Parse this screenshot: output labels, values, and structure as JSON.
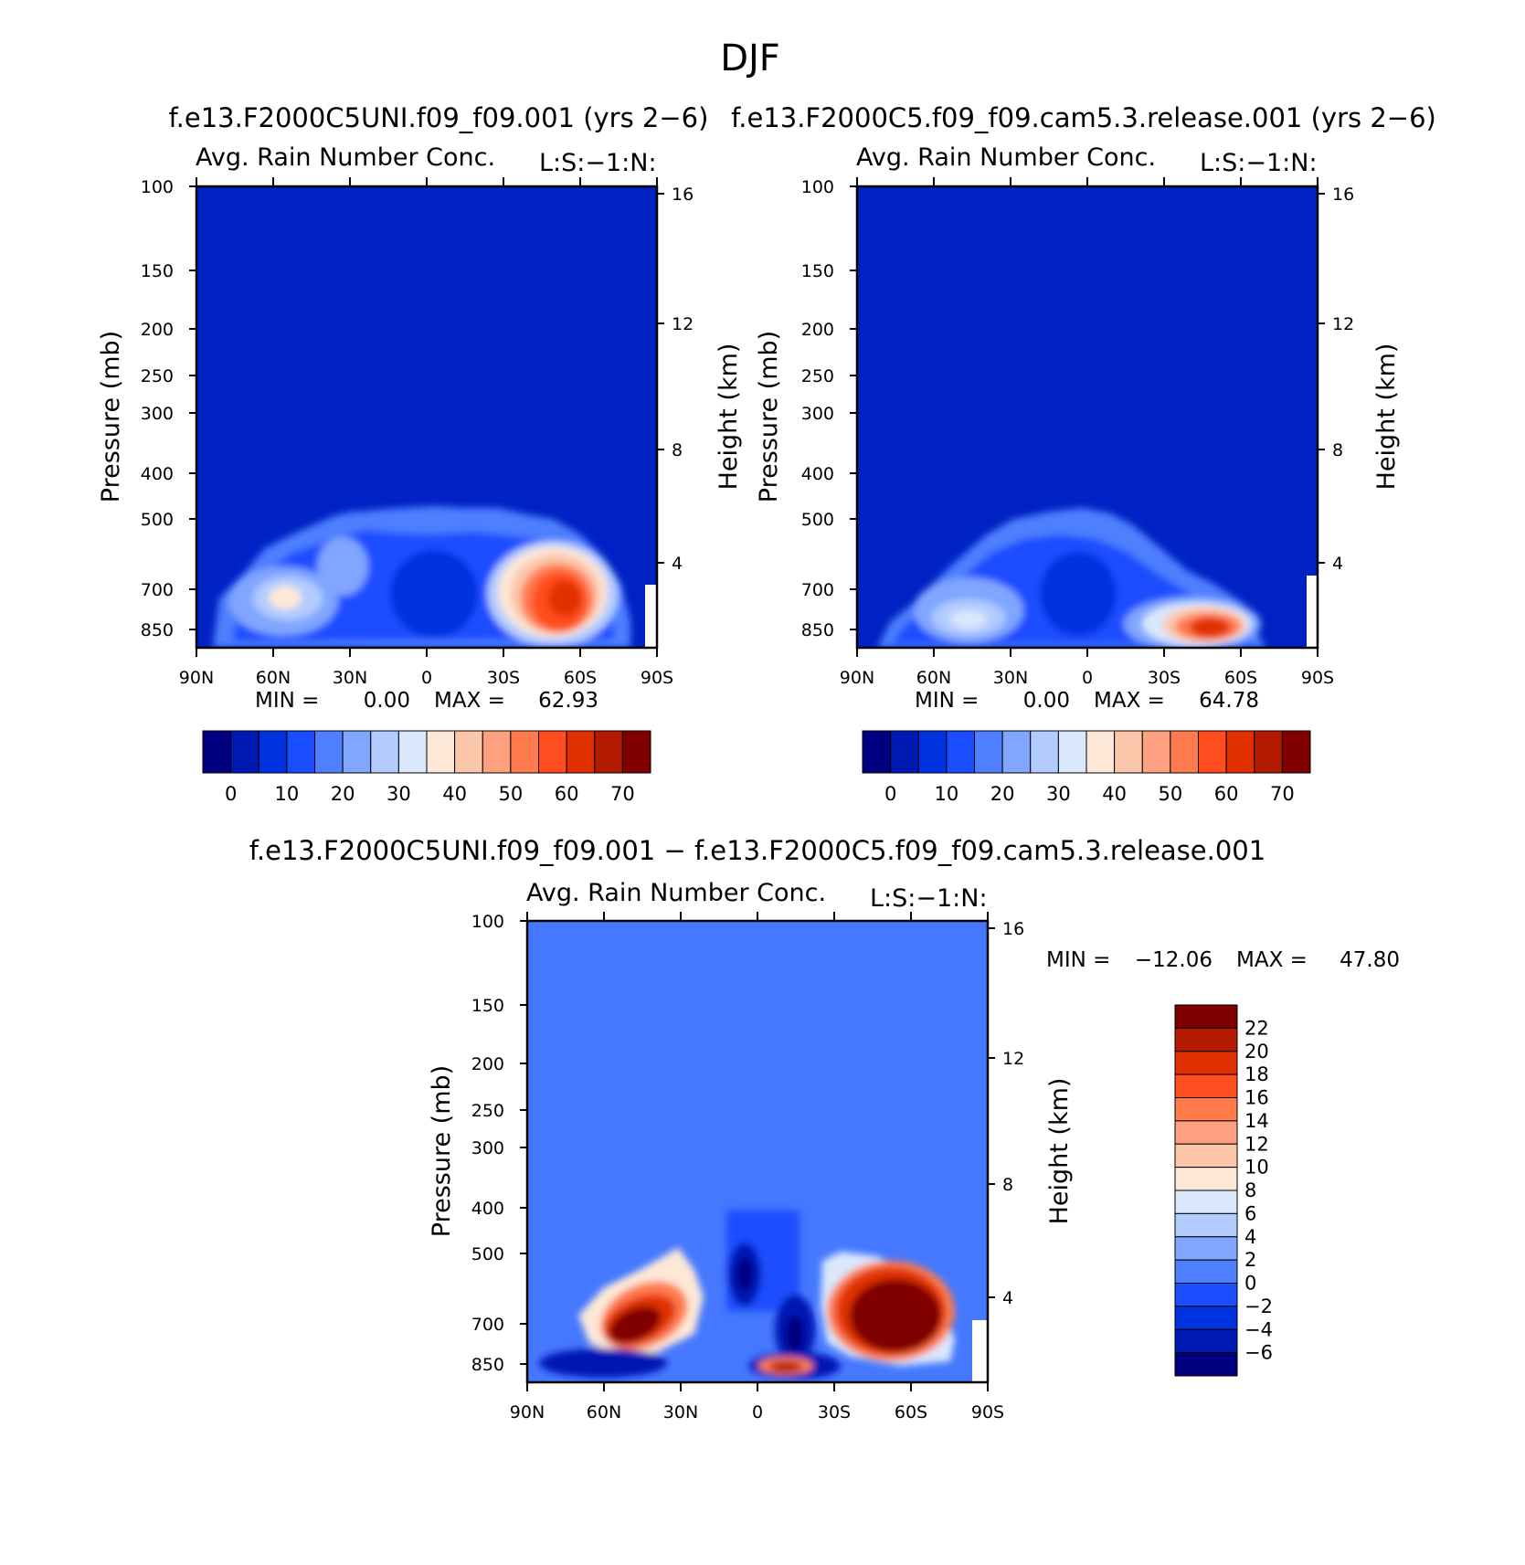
{
  "figure": {
    "title": "DJF",
    "diff_title": "f.e13.F2000C5UNI.f09_f09.001 − f.e13.F2000C5.f09_f09.cam5.3.release.001"
  },
  "colors": {
    "abs_levels": [
      "#000080",
      "#0019b3",
      "#0033e0",
      "#1a4dff",
      "#4d7fff",
      "#80a6ff",
      "#b3ccff",
      "#d9e8fc",
      "#fde8d8",
      "#fcc6ab",
      "#fca07f",
      "#ff7a4d",
      "#ff4d1f",
      "#e03000",
      "#b31a00",
      "#800000"
    ],
    "diff_levels": [
      "#000080",
      "#0019b3",
      "#0033e0",
      "#1a4dff",
      "#4d7fff",
      "#80a6ff",
      "#b3ccff",
      "#d9e8fc",
      "#fde8d8",
      "#fcc6ab",
      "#fca07f",
      "#ff7a4d",
      "#ff4d1f",
      "#e03000",
      "#b31a00",
      "#800000"
    ],
    "abs_background": "#0022c4",
    "diff_background": "#4578ff"
  },
  "chart_data": [
    {
      "type": "heatmap",
      "panel": "left",
      "run_title": "f.e13.F2000C5UNI.f09_f09.001 (yrs 2−6)",
      "title": "Avg. Rain Number Conc.",
      "corner_label": "L:S:−1:N:",
      "ylabel": "Pressure (mb)",
      "y2label": "Height (km)",
      "x_ticks": [
        "90N",
        "60N",
        "30N",
        "0",
        "30S",
        "60S",
        "90S"
      ],
      "y_ticks": [
        "100",
        "150",
        "200",
        "250",
        "300",
        "400",
        "500",
        "700",
        "850"
      ],
      "y2_ticks": [
        "16",
        "12",
        "8",
        "4"
      ],
      "min_label": "MIN =",
      "min_value": "0.00",
      "max_label": "MAX =",
      "max_value": "62.93",
      "colorbar_labels": [
        "0",
        "10",
        "20",
        "30",
        "40",
        "50",
        "60",
        "70"
      ],
      "features": [
        {
          "lat": -50,
          "p": 760,
          "value": 62.9
        },
        {
          "lat": 50,
          "p": 700,
          "value": 36
        },
        {
          "lat": 33,
          "p": 610,
          "value": 28
        },
        {
          "lat": 8,
          "p": 650,
          "value": 18
        }
      ]
    },
    {
      "type": "heatmap",
      "panel": "right",
      "run_title": "f.e13.F2000C5.f09_f09.cam5.3.release.001 (yrs 2−6)",
      "title": "Avg. Rain Number Conc.",
      "corner_label": "L:S:−1:N:",
      "ylabel": "Pressure (mb)",
      "y2label": "Height (km)",
      "x_ticks": [
        "90N",
        "60N",
        "30N",
        "0",
        "30S",
        "60S",
        "90S"
      ],
      "y_ticks": [
        "100",
        "150",
        "200",
        "250",
        "300",
        "400",
        "500",
        "700",
        "850"
      ],
      "y2_ticks": [
        "16",
        "12",
        "8",
        "4"
      ],
      "min_label": "MIN =",
      "min_value": "0.00",
      "max_label": "MAX =",
      "max_value": "64.78",
      "colorbar_labels": [
        "0",
        "10",
        "20",
        "30",
        "40",
        "50",
        "60",
        "70"
      ],
      "features": [
        {
          "lat": -47,
          "p": 830,
          "value": 64.8
        },
        {
          "lat": 45,
          "p": 760,
          "value": 28
        },
        {
          "lat": 5,
          "p": 560,
          "value": 15
        }
      ]
    },
    {
      "type": "heatmap",
      "panel": "difference",
      "title": "Avg. Rain Number Conc.",
      "corner_label": "L:S:−1:N:",
      "ylabel": "Pressure (mb)",
      "y2label": "Height (km)",
      "x_ticks": [
        "90N",
        "60N",
        "30N",
        "0",
        "30S",
        "60S",
        "90S"
      ],
      "y_ticks": [
        "100",
        "150",
        "200",
        "250",
        "300",
        "400",
        "500",
        "700",
        "850"
      ],
      "y2_ticks": [
        "16",
        "12",
        "8",
        "4"
      ],
      "min_label": "MIN =",
      "min_value": "−12.06",
      "max_label": "MAX =",
      "max_value": "47.80",
      "colorbar_labels": [
        "22",
        "20",
        "18",
        "16",
        "14",
        "12",
        "10",
        "8",
        "6",
        "4",
        "2",
        "0",
        "−2",
        "−4",
        "−6"
      ],
      "features": [
        {
          "lat": -50,
          "p": 660,
          "value": 47.8
        },
        {
          "lat": 50,
          "p": 680,
          "value": 24
        },
        {
          "lat": 5,
          "p": 560,
          "value": -12
        }
      ]
    }
  ]
}
